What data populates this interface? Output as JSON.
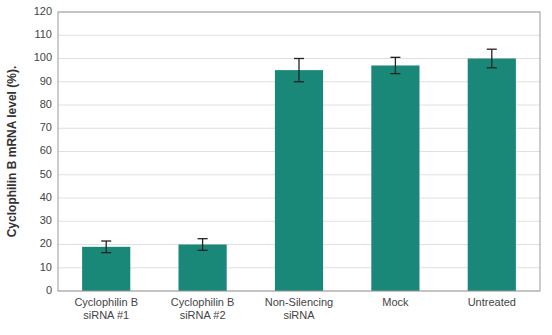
{
  "chart_data": {
    "type": "bar",
    "categories": [
      "Cyclophilin B\nsiRNA #1",
      "Cyclophilin B\nsiRNA #2",
      "Non-Silencing\nsiRNA",
      "Mock",
      "Untreated"
    ],
    "values": [
      19,
      20,
      95,
      97,
      100
    ],
    "errors": [
      2.5,
      2.5,
      5,
      3.5,
      4
    ],
    "color": "#1a8878",
    "ylabel": "Cyclophilin B mRNA level (%).",
    "ylim": [
      0,
      120
    ],
    "yticks": [
      0,
      10,
      20,
      30,
      40,
      50,
      60,
      70,
      80,
      90,
      100,
      110,
      120
    ],
    "grid": true
  }
}
